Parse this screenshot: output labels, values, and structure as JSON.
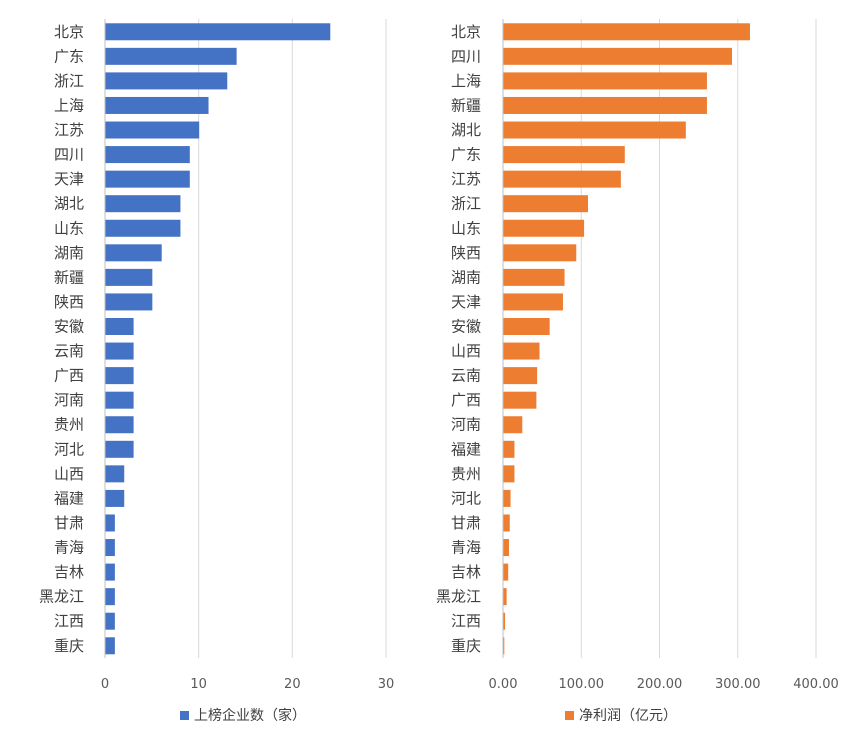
{
  "chart_data": [
    {
      "type": "bar",
      "orientation": "horizontal",
      "categories": [
        "北京",
        "广东",
        "浙江",
        "上海",
        "江苏",
        "四川",
        "天津",
        "湖北",
        "山东",
        "湖南",
        "新疆",
        "陕西",
        "安徽",
        "云南",
        "广西",
        "河南",
        "贵州",
        "河北",
        "山西",
        "福建",
        "甘肃",
        "青海",
        "吉林",
        "黑龙江",
        "江西",
        "重庆"
      ],
      "series": [
        {
          "name": "上榜企业数（家）",
          "color": "#4472C4",
          "values": [
            24,
            14,
            13,
            11,
            10,
            9,
            9,
            8,
            8,
            6,
            5,
            5,
            3,
            3,
            3,
            3,
            3,
            3,
            2,
            2,
            1,
            1,
            1,
            1,
            1,
            1
          ]
        }
      ],
      "xlim": [
        0,
        30
      ],
      "xticks": [
        0,
        10,
        20,
        30
      ],
      "xtick_labels": [
        "0",
        "10",
        "20",
        "30"
      ],
      "grid": true,
      "legend": "bottom"
    },
    {
      "type": "bar",
      "orientation": "horizontal",
      "categories": [
        "北京",
        "四川",
        "上海",
        "新疆",
        "湖北",
        "广东",
        "江苏",
        "浙江",
        "山东",
        "陕西",
        "湖南",
        "天津",
        "安徽",
        "山西",
        "云南",
        "广西",
        "河南",
        "福建",
        "贵州",
        "河北",
        "甘肃",
        "青海",
        "吉林",
        "黑龙江",
        "江西",
        "重庆"
      ],
      "series": [
        {
          "name": "净利润（亿元）",
          "color": "#ED7D31",
          "values": [
            315,
            292,
            260,
            260,
            233,
            155,
            150,
            108,
            103,
            93,
            78,
            76,
            59,
            46,
            43,
            42,
            24,
            14,
            14,
            9,
            8,
            7,
            6,
            4,
            2,
            0
          ]
        }
      ],
      "xlim": [
        0,
        400
      ],
      "xticks": [
        0,
        100,
        200,
        300,
        400
      ],
      "xtick_labels": [
        "0.00",
        "100.00",
        "200.00",
        "300.00",
        "400.00"
      ],
      "grid": true,
      "legend": "bottom"
    }
  ]
}
